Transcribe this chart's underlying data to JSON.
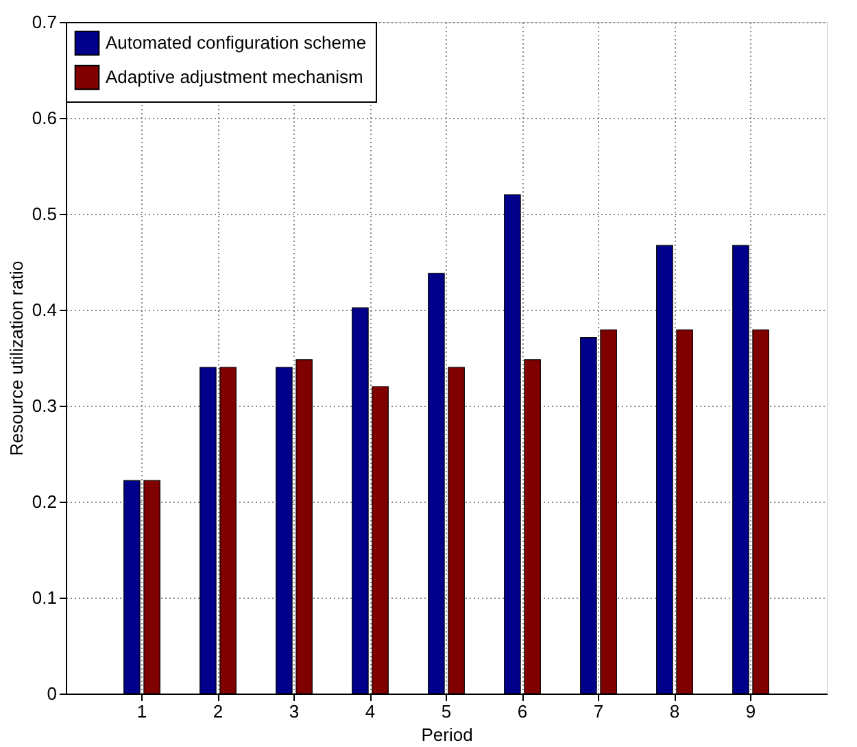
{
  "chart_data": {
    "type": "bar",
    "xlabel": "Period",
    "ylabel": "Resource utilization ratio",
    "categories": [
      "1",
      "2",
      "3",
      "4",
      "5",
      "6",
      "7",
      "8",
      "9"
    ],
    "series": [
      {
        "name": "Automated configuration scheme",
        "color": "#00008b",
        "values": [
          0.222,
          0.34,
          0.34,
          0.402,
          0.438,
          0.52,
          0.371,
          0.467,
          0.467
        ]
      },
      {
        "name": "Adaptive adjustment mechanism",
        "color": "#800000",
        "values": [
          0.222,
          0.34,
          0.348,
          0.32,
          0.34,
          0.348,
          0.379,
          0.379,
          0.379
        ]
      }
    ],
    "ylim": [
      0,
      0.7
    ],
    "yticks": [
      0,
      0.1,
      0.2,
      0.3,
      0.4,
      0.5,
      0.6,
      0.7
    ],
    "grid": true,
    "legend": "top left"
  }
}
